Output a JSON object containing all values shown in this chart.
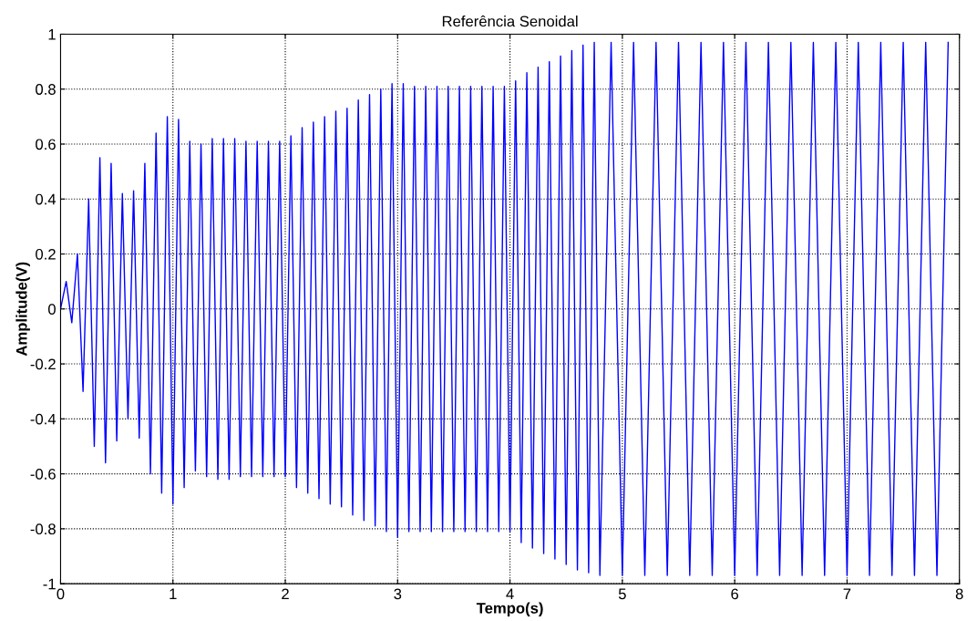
{
  "chart_data": {
    "type": "line",
    "title": "Referência Senoidal",
    "xlabel": "Tempo(s)",
    "ylabel": "Amplitude(V)",
    "xlim": [
      0,
      8
    ],
    "xticks": [
      0,
      1,
      2,
      3,
      4,
      5,
      6,
      7,
      8
    ],
    "ylim": [
      -1,
      1
    ],
    "yticks": [
      -1,
      -0.8,
      -0.6,
      -0.4,
      -0.2,
      0,
      0.2,
      0.4,
      0.6,
      0.8,
      1
    ],
    "grid": true,
    "marker": "none",
    "line_style": "solid",
    "series": [
      {
        "color": "#0000ff",
        "x": [
          0,
          0.05,
          0.1,
          0.15,
          0.2,
          0.25,
          0.3,
          0.35,
          0.4,
          0.45,
          0.5,
          0.55,
          0.6,
          0.65,
          0.7,
          0.75,
          0.8,
          0.85,
          0.9,
          0.95,
          1.0,
          1.05,
          1.1,
          1.15,
          1.2,
          1.25,
          1.3,
          1.35,
          1.4,
          1.45,
          1.5,
          1.55,
          1.6,
          1.65,
          1.7,
          1.75,
          1.8,
          1.85,
          1.9,
          1.95,
          2.0,
          2.05,
          2.1,
          2.15,
          2.2,
          2.25,
          2.3,
          2.35,
          2.4,
          2.45,
          2.5,
          2.55,
          2.6,
          2.65,
          2.7,
          2.75,
          2.8,
          2.85,
          2.9,
          2.95,
          3.0,
          3.05,
          3.1,
          3.15,
          3.2,
          3.25,
          3.3,
          3.35,
          3.4,
          3.45,
          3.5,
          3.55,
          3.6,
          3.65,
          3.7,
          3.75,
          3.8,
          3.85,
          3.9,
          3.95,
          4.0,
          4.05,
          4.1,
          4.15,
          4.2,
          4.25,
          4.3,
          4.35,
          4.4,
          4.45,
          4.5,
          4.55,
          4.6,
          4.65,
          4.7,
          4.75,
          4.8,
          4.9,
          5.0,
          5.1,
          5.2,
          5.3,
          5.4,
          5.5,
          5.6,
          5.7,
          5.8,
          5.9,
          6.0,
          6.1,
          6.2,
          6.3,
          6.4,
          6.5,
          6.6,
          6.7,
          6.8,
          6.9,
          7.0,
          7.1,
          7.2,
          7.3,
          7.4,
          7.5,
          7.6,
          7.7,
          7.8,
          7.9
        ],
        "values": [
          0,
          0.1,
          -0.05,
          0.2,
          -0.3,
          0.4,
          -0.5,
          0.55,
          -0.56,
          0.53,
          -0.48,
          0.42,
          -0.4,
          0.43,
          -0.47,
          0.53,
          -0.6,
          0.64,
          -0.67,
          0.7,
          -0.71,
          0.69,
          -0.65,
          0.61,
          -0.59,
          0.6,
          -0.61,
          0.62,
          -0.62,
          0.62,
          -0.62,
          0.62,
          -0.61,
          0.61,
          -0.61,
          0.61,
          -0.61,
          0.61,
          -0.61,
          0.61,
          -0.61,
          0.63,
          -0.65,
          0.66,
          -0.67,
          0.68,
          -0.69,
          0.7,
          -0.71,
          0.72,
          -0.72,
          0.73,
          -0.75,
          0.76,
          -0.77,
          0.78,
          -0.79,
          0.8,
          -0.81,
          0.82,
          -0.83,
          0.82,
          -0.81,
          0.81,
          -0.81,
          0.81,
          -0.81,
          0.81,
          -0.81,
          0.81,
          -0.81,
          0.81,
          -0.81,
          0.81,
          -0.81,
          0.81,
          -0.81,
          0.81,
          -0.81,
          0.81,
          -0.81,
          0.83,
          -0.85,
          0.86,
          -0.87,
          0.88,
          -0.89,
          0.9,
          -0.91,
          0.92,
          -0.93,
          0.94,
          -0.95,
          0.96,
          -0.96,
          0.97,
          -0.97,
          0.97,
          -0.97,
          0.97,
          -0.97,
          0.97,
          -0.97,
          0.97,
          -0.97,
          0.97,
          -0.97,
          0.97,
          -0.97,
          0.97,
          -0.97,
          0.97,
          -0.97,
          0.97,
          -0.97,
          0.97,
          -0.97,
          0.97,
          -0.97,
          0.97,
          -0.97,
          0.97,
          -0.97,
          0.97,
          -0.97,
          0.97,
          -0.97,
          0.97
        ]
      }
    ]
  }
}
